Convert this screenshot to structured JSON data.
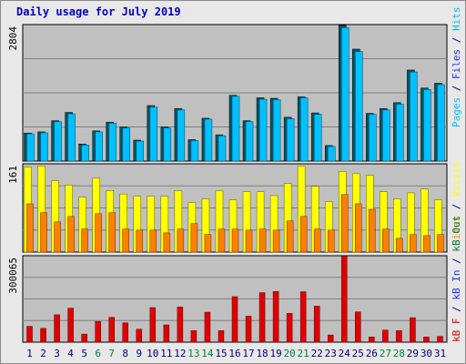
{
  "title": "Daily usage for July 2019",
  "colors": {
    "hits": "#00c0e0",
    "files": "#2030ff",
    "pages": "#00c0ff",
    "visits": "#ffff00",
    "sites": "#ff8000",
    "kbytes": "#e00000",
    "weekend": "#008040",
    "weekday": "#000080",
    "plot_bg": "#c0c0c0"
  },
  "chart_data": [
    {
      "type": "bar",
      "panel": "hits",
      "ymax_label": "2804",
      "ylim": [
        0,
        2804
      ],
      "axis_labels": [
        {
          "text": "Pages",
          "color_key": "pages"
        },
        {
          "text": " / ",
          "color_key": "weekday"
        },
        {
          "text": "Files",
          "color_key": "files"
        },
        {
          "text": " / ",
          "color_key": "weekday"
        },
        {
          "text": "Hits",
          "color_key": "hits"
        }
      ],
      "categories": [
        "1",
        "2",
        "3",
        "4",
        "5",
        "6",
        "7",
        "8",
        "9",
        "10",
        "11",
        "12",
        "13",
        "14",
        "15",
        "16",
        "17",
        "18",
        "19",
        "20",
        "21",
        "22",
        "23",
        "24",
        "25",
        "26",
        "27",
        "28",
        "29",
        "30",
        "31"
      ],
      "series": [
        {
          "key": "hits",
          "values": [
            575,
            600,
            830,
            1000,
            350,
            620,
            800,
            700,
            430,
            1140,
            700,
            1080,
            440,
            880,
            540,
            1350,
            830,
            1300,
            1290,
            900,
            1320,
            990,
            320,
            2790,
            2300,
            980,
            1080,
            1200,
            1870,
            1500,
            1600
          ]
        },
        {
          "key": "files",
          "values": [
            560,
            580,
            810,
            970,
            330,
            600,
            780,
            680,
            410,
            1110,
            680,
            1050,
            420,
            860,
            520,
            1330,
            810,
            1270,
            1260,
            870,
            1300,
            960,
            300,
            2740,
            2250,
            960,
            1050,
            1170,
            1830,
            1470,
            1570
          ]
        }
      ]
    },
    {
      "type": "bar",
      "panel": "visits",
      "ymax_label": "161",
      "ylim": [
        0,
        161
      ],
      "axis_labels": [
        {
          "text": "kB F",
          "color_key": "kbytes"
        },
        {
          "text": " / ",
          "color_key": "weekday"
        },
        {
          "text": "kB In",
          "color_key": "files"
        },
        {
          "text": " / ",
          "color_key": "weekday"
        },
        {
          "text": "kB Out",
          "color_key": "weekend"
        }
      ],
      "series_labels": [
        {
          "text": "Sites",
          "color_key": "sites"
        },
        {
          "text": " / ",
          "color_key": "weekday"
        },
        {
          "text": "Visits",
          "color_key": "visits"
        }
      ],
      "categories": [
        "1",
        "2",
        "3",
        "4",
        "5",
        "6",
        "7",
        "8",
        "9",
        "10",
        "11",
        "12",
        "13",
        "14",
        "15",
        "16",
        "17",
        "18",
        "19",
        "20",
        "21",
        "22",
        "23",
        "24",
        "25",
        "26",
        "27",
        "28",
        "29",
        "30",
        "31"
      ],
      "series": [
        {
          "key": "visits",
          "values": [
            155,
            157,
            130,
            122,
            100,
            135,
            112,
            106,
            102,
            102,
            102,
            112,
            90,
            97,
            112,
            95,
            110,
            110,
            103,
            125,
            157,
            120,
            92,
            147,
            143,
            140,
            110,
            97,
            108,
            115,
            95
          ]
        },
        {
          "key": "sites",
          "values": [
            88,
            72,
            55,
            65,
            42,
            70,
            72,
            42,
            40,
            40,
            35,
            42,
            52,
            32,
            42,
            42,
            40,
            42,
            40,
            57,
            65,
            42,
            40,
            105,
            88,
            78,
            42,
            25,
            32,
            30,
            32
          ]
        }
      ]
    },
    {
      "type": "bar",
      "panel": "kbytes",
      "ymax_label": "300065",
      "ylim": [
        0,
        300065
      ],
      "categories": [
        "1",
        "2",
        "3",
        "4",
        "5",
        "6",
        "7",
        "8",
        "9",
        "10",
        "11",
        "12",
        "13",
        "14",
        "15",
        "16",
        "17",
        "18",
        "19",
        "20",
        "21",
        "22",
        "23",
        "24",
        "25",
        "26",
        "27",
        "28",
        "29",
        "30",
        "31"
      ],
      "series": [
        {
          "key": "kbytes",
          "values": [
            55000,
            48000,
            95000,
            118000,
            28000,
            72000,
            86000,
            67000,
            45000,
            120000,
            60000,
            122000,
            40000,
            104000,
            40000,
            158000,
            90000,
            172000,
            176000,
            100000,
            175000,
            125000,
            25000,
            298000,
            105000,
            18000,
            42000,
            40000,
            85000,
            18000,
            20000
          ]
        }
      ]
    }
  ],
  "weekend_days": [
    "6",
    "7",
    "13",
    "14",
    "20",
    "21",
    "27",
    "28"
  ]
}
